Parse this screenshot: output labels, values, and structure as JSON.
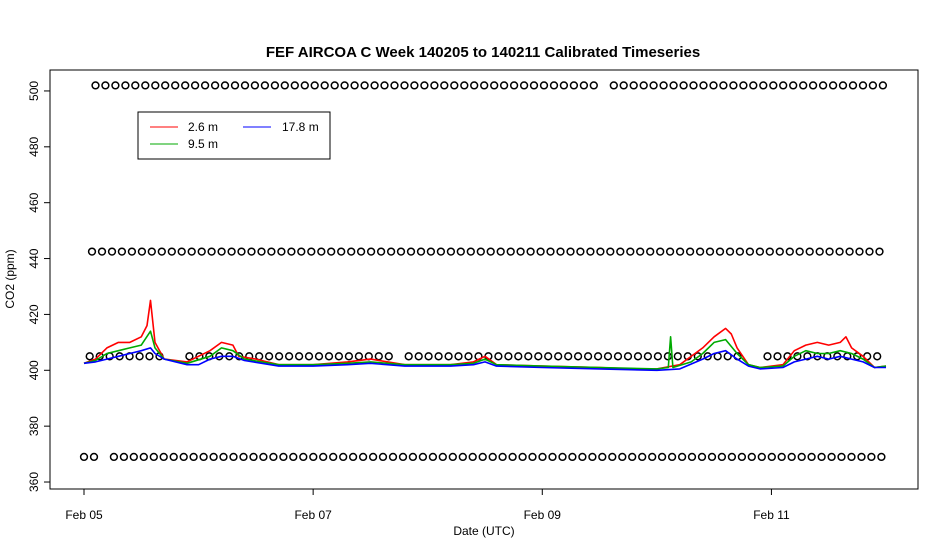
{
  "chart_data": {
    "type": "line",
    "title": "FEF AIRCOA C  Week 140205 to 140211  Calibrated Timeseries",
    "xlabel": "Date (UTC)",
    "ylabel": "CO2 (ppm)",
    "x_range_days": [
      5.0,
      12.0
    ],
    "ylim": [
      357.5,
      507.5
    ],
    "x_tick_labels": [
      "Feb 05",
      "Feb 07",
      "Feb 09",
      "Feb 11"
    ],
    "x_tick_days": [
      5,
      7,
      9,
      11
    ],
    "y_ticks": [
      360,
      380,
      400,
      420,
      440,
      460,
      480,
      500
    ],
    "grid": false,
    "legend": {
      "placement": "top-left",
      "columns": 2
    },
    "series": [
      {
        "name": "2.6 m",
        "color": "#ff0000",
        "points": [
          [
            5.0,
            402.5
          ],
          [
            5.1,
            404
          ],
          [
            5.2,
            408
          ],
          [
            5.3,
            410
          ],
          [
            5.4,
            410
          ],
          [
            5.5,
            412
          ],
          [
            5.55,
            416
          ],
          [
            5.58,
            425
          ],
          [
            5.62,
            410
          ],
          [
            5.7,
            404
          ],
          [
            5.9,
            403
          ],
          [
            6.1,
            407
          ],
          [
            6.2,
            410
          ],
          [
            6.3,
            409
          ],
          [
            6.35,
            405
          ],
          [
            6.5,
            404
          ],
          [
            6.7,
            402
          ],
          [
            7.0,
            402
          ],
          [
            7.3,
            403
          ],
          [
            7.5,
            404
          ],
          [
            7.8,
            402
          ],
          [
            8.2,
            402
          ],
          [
            8.4,
            403
          ],
          [
            8.5,
            405
          ],
          [
            8.6,
            402
          ],
          [
            9.0,
            401.5
          ],
          [
            9.5,
            401
          ],
          [
            9.8,
            400.5
          ],
          [
            10.0,
            400.5
          ],
          [
            10.2,
            402
          ],
          [
            10.4,
            408
          ],
          [
            10.5,
            412
          ],
          [
            10.6,
            415
          ],
          [
            10.65,
            413
          ],
          [
            10.7,
            408
          ],
          [
            10.8,
            402
          ],
          [
            10.9,
            401
          ],
          [
            11.1,
            402
          ],
          [
            11.2,
            407
          ],
          [
            11.3,
            409
          ],
          [
            11.4,
            410
          ],
          [
            11.5,
            409
          ],
          [
            11.6,
            410
          ],
          [
            11.65,
            412
          ],
          [
            11.7,
            408
          ],
          [
            11.8,
            405
          ],
          [
            11.9,
            401
          ],
          [
            12.0,
            401.5
          ]
        ]
      },
      {
        "name": "9.5 m",
        "color": "#00aa00",
        "points": [
          [
            5.0,
            402.5
          ],
          [
            5.1,
            403.5
          ],
          [
            5.2,
            406
          ],
          [
            5.3,
            407
          ],
          [
            5.4,
            408
          ],
          [
            5.5,
            409
          ],
          [
            5.58,
            414
          ],
          [
            5.62,
            408
          ],
          [
            5.7,
            404
          ],
          [
            5.9,
            402.5
          ],
          [
            6.1,
            405
          ],
          [
            6.2,
            408
          ],
          [
            6.3,
            407
          ],
          [
            6.4,
            404
          ],
          [
            6.7,
            402
          ],
          [
            7.0,
            402
          ],
          [
            7.3,
            402.5
          ],
          [
            7.5,
            403
          ],
          [
            7.8,
            402
          ],
          [
            8.2,
            402
          ],
          [
            8.4,
            402.5
          ],
          [
            8.5,
            404
          ],
          [
            8.6,
            402
          ],
          [
            9.0,
            401.5
          ],
          [
            9.5,
            401
          ],
          [
            10.0,
            400.5
          ],
          [
            10.1,
            401
          ],
          [
            10.12,
            412
          ],
          [
            10.14,
            401
          ],
          [
            10.3,
            403
          ],
          [
            10.4,
            406
          ],
          [
            10.5,
            410
          ],
          [
            10.6,
            411
          ],
          [
            10.7,
            406
          ],
          [
            10.8,
            402
          ],
          [
            10.9,
            401
          ],
          [
            11.1,
            401.5
          ],
          [
            11.2,
            405
          ],
          [
            11.3,
            407
          ],
          [
            11.4,
            406
          ],
          [
            11.5,
            406
          ],
          [
            11.6,
            407
          ],
          [
            11.7,
            406
          ],
          [
            11.8,
            404
          ],
          [
            11.9,
            401
          ],
          [
            12.0,
            401.5
          ]
        ]
      },
      {
        "name": "17.8 m",
        "color": "#0000ff",
        "points": [
          [
            5.0,
            402.5
          ],
          [
            5.1,
            403
          ],
          [
            5.2,
            404
          ],
          [
            5.3,
            405
          ],
          [
            5.4,
            406
          ],
          [
            5.5,
            407
          ],
          [
            5.58,
            408
          ],
          [
            5.62,
            406
          ],
          [
            5.7,
            404
          ],
          [
            5.9,
            402
          ],
          [
            6.0,
            402
          ],
          [
            6.1,
            404
          ],
          [
            6.2,
            405
          ],
          [
            6.3,
            405
          ],
          [
            6.4,
            403.5
          ],
          [
            6.7,
            401.5
          ],
          [
            7.0,
            401.5
          ],
          [
            7.3,
            402
          ],
          [
            7.5,
            402.5
          ],
          [
            7.8,
            401.5
          ],
          [
            8.2,
            401.5
          ],
          [
            8.4,
            402
          ],
          [
            8.5,
            403
          ],
          [
            8.6,
            401.5
          ],
          [
            9.0,
            401
          ],
          [
            9.5,
            400.5
          ],
          [
            10.0,
            400
          ],
          [
            10.2,
            400.5
          ],
          [
            10.4,
            404
          ],
          [
            10.5,
            406
          ],
          [
            10.6,
            407
          ],
          [
            10.7,
            404
          ],
          [
            10.8,
            401.5
          ],
          [
            10.9,
            400.5
          ],
          [
            11.1,
            401
          ],
          [
            11.2,
            403
          ],
          [
            11.3,
            404
          ],
          [
            11.4,
            405
          ],
          [
            11.5,
            404
          ],
          [
            11.6,
            405
          ],
          [
            11.7,
            404
          ],
          [
            11.8,
            403
          ],
          [
            11.9,
            401
          ],
          [
            12.0,
            401
          ]
        ]
      }
    ],
    "calibration_markers": {
      "marker": "open circles",
      "color": "#000000",
      "rows": [
        {
          "y": 502,
          "x_start": 5.1,
          "x_end": 11.98,
          "spacing": 0.087,
          "gaps": [
            [
              9.45,
              9.6
            ]
          ]
        },
        {
          "y": 442.5,
          "x_start": 5.07,
          "x_end": 11.98,
          "spacing": 0.087,
          "gaps": []
        },
        {
          "y": 405,
          "x_start": 5.05,
          "x_end": 11.98,
          "spacing": 0.087,
          "gaps": [
            [
              5.7,
              5.85
            ],
            [
              7.7,
              7.8
            ],
            [
              10.75,
              10.9
            ]
          ]
        },
        {
          "y": 369,
          "x_start": 5.0,
          "x_end": 11.98,
          "spacing": 0.087,
          "gaps": [
            [
              5.13,
              5.2
            ]
          ]
        }
      ]
    }
  },
  "icons": {
    "legend_swatch": "line-swatch",
    "marker": "open-circle-marker"
  }
}
